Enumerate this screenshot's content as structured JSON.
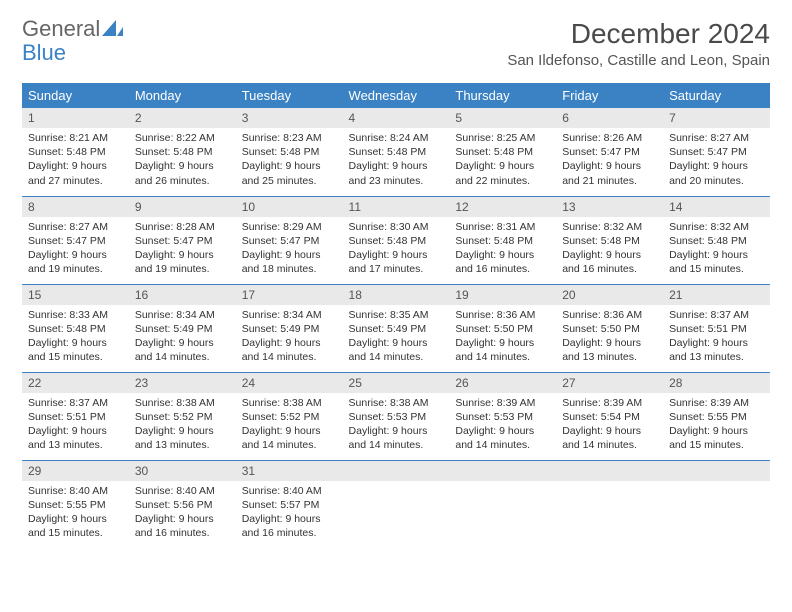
{
  "brand": {
    "part1": "General",
    "part2": "Blue"
  },
  "title": {
    "month": "December 2024",
    "location": "San Ildefonso, Castille and Leon, Spain"
  },
  "colors": {
    "header_bg": "#3b82c4",
    "header_text": "#ffffff",
    "daynum_bg": "#e9e9e9",
    "border": "#3b82c4",
    "brand_gray": "#666666",
    "brand_blue": "#3b82c4"
  },
  "weekdays": [
    "Sunday",
    "Monday",
    "Tuesday",
    "Wednesday",
    "Thursday",
    "Friday",
    "Saturday"
  ],
  "weeks": [
    [
      {
        "n": "1",
        "sr": "8:21 AM",
        "ss": "5:48 PM",
        "dl": "9 hours and 27 minutes."
      },
      {
        "n": "2",
        "sr": "8:22 AM",
        "ss": "5:48 PM",
        "dl": "9 hours and 26 minutes."
      },
      {
        "n": "3",
        "sr": "8:23 AM",
        "ss": "5:48 PM",
        "dl": "9 hours and 25 minutes."
      },
      {
        "n": "4",
        "sr": "8:24 AM",
        "ss": "5:48 PM",
        "dl": "9 hours and 23 minutes."
      },
      {
        "n": "5",
        "sr": "8:25 AM",
        "ss": "5:48 PM",
        "dl": "9 hours and 22 minutes."
      },
      {
        "n": "6",
        "sr": "8:26 AM",
        "ss": "5:47 PM",
        "dl": "9 hours and 21 minutes."
      },
      {
        "n": "7",
        "sr": "8:27 AM",
        "ss": "5:47 PM",
        "dl": "9 hours and 20 minutes."
      }
    ],
    [
      {
        "n": "8",
        "sr": "8:27 AM",
        "ss": "5:47 PM",
        "dl": "9 hours and 19 minutes."
      },
      {
        "n": "9",
        "sr": "8:28 AM",
        "ss": "5:47 PM",
        "dl": "9 hours and 19 minutes."
      },
      {
        "n": "10",
        "sr": "8:29 AM",
        "ss": "5:47 PM",
        "dl": "9 hours and 18 minutes."
      },
      {
        "n": "11",
        "sr": "8:30 AM",
        "ss": "5:48 PM",
        "dl": "9 hours and 17 minutes."
      },
      {
        "n": "12",
        "sr": "8:31 AM",
        "ss": "5:48 PM",
        "dl": "9 hours and 16 minutes."
      },
      {
        "n": "13",
        "sr": "8:32 AM",
        "ss": "5:48 PM",
        "dl": "9 hours and 16 minutes."
      },
      {
        "n": "14",
        "sr": "8:32 AM",
        "ss": "5:48 PM",
        "dl": "9 hours and 15 minutes."
      }
    ],
    [
      {
        "n": "15",
        "sr": "8:33 AM",
        "ss": "5:48 PM",
        "dl": "9 hours and 15 minutes."
      },
      {
        "n": "16",
        "sr": "8:34 AM",
        "ss": "5:49 PM",
        "dl": "9 hours and 14 minutes."
      },
      {
        "n": "17",
        "sr": "8:34 AM",
        "ss": "5:49 PM",
        "dl": "9 hours and 14 minutes."
      },
      {
        "n": "18",
        "sr": "8:35 AM",
        "ss": "5:49 PM",
        "dl": "9 hours and 14 minutes."
      },
      {
        "n": "19",
        "sr": "8:36 AM",
        "ss": "5:50 PM",
        "dl": "9 hours and 14 minutes."
      },
      {
        "n": "20",
        "sr": "8:36 AM",
        "ss": "5:50 PM",
        "dl": "9 hours and 13 minutes."
      },
      {
        "n": "21",
        "sr": "8:37 AM",
        "ss": "5:51 PM",
        "dl": "9 hours and 13 minutes."
      }
    ],
    [
      {
        "n": "22",
        "sr": "8:37 AM",
        "ss": "5:51 PM",
        "dl": "9 hours and 13 minutes."
      },
      {
        "n": "23",
        "sr": "8:38 AM",
        "ss": "5:52 PM",
        "dl": "9 hours and 13 minutes."
      },
      {
        "n": "24",
        "sr": "8:38 AM",
        "ss": "5:52 PM",
        "dl": "9 hours and 14 minutes."
      },
      {
        "n": "25",
        "sr": "8:38 AM",
        "ss": "5:53 PM",
        "dl": "9 hours and 14 minutes."
      },
      {
        "n": "26",
        "sr": "8:39 AM",
        "ss": "5:53 PM",
        "dl": "9 hours and 14 minutes."
      },
      {
        "n": "27",
        "sr": "8:39 AM",
        "ss": "5:54 PM",
        "dl": "9 hours and 14 minutes."
      },
      {
        "n": "28",
        "sr": "8:39 AM",
        "ss": "5:55 PM",
        "dl": "9 hours and 15 minutes."
      }
    ],
    [
      {
        "n": "29",
        "sr": "8:40 AM",
        "ss": "5:55 PM",
        "dl": "9 hours and 15 minutes."
      },
      {
        "n": "30",
        "sr": "8:40 AM",
        "ss": "5:56 PM",
        "dl": "9 hours and 16 minutes."
      },
      {
        "n": "31",
        "sr": "8:40 AM",
        "ss": "5:57 PM",
        "dl": "9 hours and 16 minutes."
      },
      {
        "empty": true
      },
      {
        "empty": true
      },
      {
        "empty": true
      },
      {
        "empty": true
      }
    ]
  ],
  "labels": {
    "sunrise": "Sunrise: ",
    "sunset": "Sunset: ",
    "daylight": "Daylight: "
  }
}
